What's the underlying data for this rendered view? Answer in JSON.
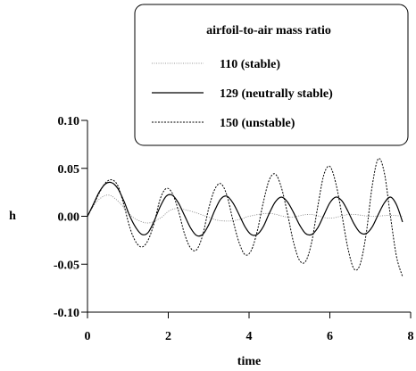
{
  "chart_data": {
    "type": "line",
    "title": "",
    "xlabel": "time",
    "ylabel": "h",
    "xlim": [
      0,
      8
    ],
    "ylim": [
      -0.1,
      0.1
    ],
    "xticks": [
      0,
      2,
      4,
      6,
      8
    ],
    "xtick_labels": [
      "0",
      "2",
      "4",
      "6",
      "8"
    ],
    "yticks": [
      0.1,
      0.05,
      0.0,
      -0.05,
      -0.1
    ],
    "ytick_labels": [
      "0.10",
      "0.05",
      "0.00",
      "-0.05",
      "-0.10"
    ],
    "grid": false,
    "legend": {
      "title": "airfoil-to-air mass ratio",
      "placement": "top-right",
      "entries": [
        "110 (stable)",
        "129 (neutrally stable)",
        "150 (unstable)"
      ]
    },
    "series": [
      {
        "name": "110 (stable)",
        "style": "dotted-thin",
        "color": "#7a7a7a",
        "x": [
          0,
          0.2,
          0.4,
          0.5,
          0.6,
          0.8,
          1.0,
          1.2,
          1.5,
          1.8,
          2.0,
          2.2,
          2.5,
          2.8,
          3.0,
          3.2,
          3.5,
          3.8,
          4.0,
          4.5,
          5.0,
          5.5,
          6.0,
          6.5,
          7.0,
          7.5,
          7.8
        ],
        "y": [
          0,
          0.014,
          0.021,
          0.022,
          0.021,
          0.014,
          0.004,
          -0.003,
          -0.007,
          -0.002,
          0.005,
          0.008,
          0.006,
          0.002,
          -0.001,
          -0.004,
          -0.005,
          -0.003,
          0.0,
          0.003,
          -0.001,
          0.002,
          -0.002,
          0.002,
          0.0,
          0.001,
          0.0
        ]
      },
      {
        "name": "129 (neutrally stable)",
        "style": "solid",
        "color": "#000000",
        "x": [
          0,
          0.15,
          0.3,
          0.45,
          0.6,
          0.75,
          0.9,
          1.05,
          1.2,
          1.35,
          1.5,
          1.65,
          1.8,
          1.95,
          2.1,
          2.25,
          2.4,
          2.55,
          2.7,
          2.85,
          3.0,
          3.15,
          3.3,
          3.45,
          3.6,
          3.75,
          3.9,
          4.05,
          4.2,
          4.35,
          4.5,
          4.65,
          4.8,
          4.95,
          5.1,
          5.25,
          5.4,
          5.55,
          5.7,
          5.85,
          6.0,
          6.15,
          6.3,
          6.45,
          6.6,
          6.75,
          6.9,
          7.05,
          7.2,
          7.35,
          7.5,
          7.65,
          7.8
        ],
        "y": [
          0,
          0.013,
          0.026,
          0.034,
          0.035,
          0.029,
          0.016,
          0.0,
          -0.012,
          -0.019,
          -0.017,
          -0.005,
          0.01,
          0.021,
          0.022,
          0.014,
          0.001,
          -0.012,
          -0.02,
          -0.019,
          -0.009,
          0.006,
          0.018,
          0.021,
          0.014,
          0.002,
          -0.011,
          -0.019,
          -0.019,
          -0.011,
          0.003,
          0.015,
          0.02,
          0.015,
          0.004,
          -0.009,
          -0.018,
          -0.019,
          -0.012,
          0.001,
          0.014,
          0.02,
          0.016,
          0.005,
          -0.008,
          -0.017,
          -0.018,
          -0.011,
          0.002,
          0.014,
          0.02,
          0.012,
          -0.006
        ]
      },
      {
        "name": "150 (unstable)",
        "style": "dashed",
        "color": "#000000",
        "x": [
          0,
          0.15,
          0.3,
          0.45,
          0.6,
          0.75,
          0.9,
          1.05,
          1.2,
          1.35,
          1.5,
          1.65,
          1.8,
          1.95,
          2.1,
          2.25,
          2.4,
          2.55,
          2.7,
          2.85,
          3.0,
          3.15,
          3.3,
          3.45,
          3.6,
          3.75,
          3.9,
          4.05,
          4.2,
          4.35,
          4.5,
          4.65,
          4.8,
          4.95,
          5.1,
          5.25,
          5.4,
          5.55,
          5.7,
          5.85,
          6.0,
          6.15,
          6.3,
          6.45,
          6.6,
          6.75,
          6.9,
          7.05,
          7.2,
          7.35,
          7.5,
          7.65,
          7.8
        ],
        "y": [
          0,
          0.012,
          0.025,
          0.035,
          0.038,
          0.032,
          0.012,
          -0.012,
          -0.027,
          -0.032,
          -0.025,
          -0.007,
          0.018,
          0.029,
          0.024,
          0.006,
          -0.018,
          -0.033,
          -0.035,
          -0.02,
          0.008,
          0.028,
          0.034,
          0.022,
          -0.004,
          -0.027,
          -0.04,
          -0.036,
          -0.016,
          0.014,
          0.038,
          0.044,
          0.03,
          0.003,
          -0.027,
          -0.046,
          -0.047,
          -0.027,
          0.01,
          0.043,
          0.052,
          0.034,
          0.001,
          -0.034,
          -0.055,
          -0.05,
          -0.018,
          0.032,
          0.06,
          0.045,
          0.0,
          -0.042,
          -0.063
        ]
      }
    ]
  }
}
